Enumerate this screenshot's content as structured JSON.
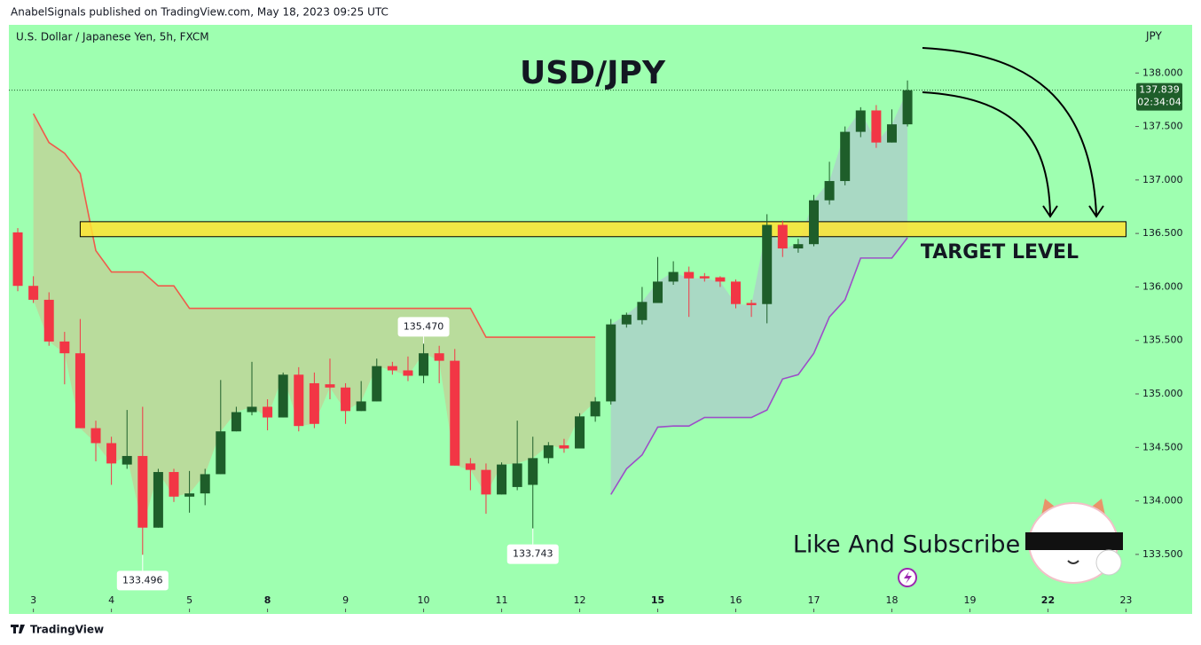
{
  "header": {
    "publisher": "AnabelSignals published on TradingView.com, May 18, 2023 09:25 UTC",
    "brand": "TradingView"
  },
  "chart_data": {
    "type": "candlestick",
    "symbol": "U.S. Dollar / Japanese Yen, 5h, FXCM",
    "currency": "JPY",
    "title": "USD/JPY",
    "open": [
      136.51,
      136.01,
      135.88,
      135.49,
      135.38,
      134.68,
      134.54,
      134.34,
      134.42,
      133.75,
      134.27,
      134.04,
      134.07,
      134.25,
      134.65,
      134.83,
      134.88,
      134.78,
      135.18,
      135.1,
      135.09,
      135.06,
      134.84,
      134.93,
      135.26,
      135.22,
      135.17,
      135.38,
      135.31,
      134.35,
      134.29,
      134.06,
      134.13,
      134.15,
      134.4,
      134.52,
      134.49,
      134.79,
      134.93,
      135.65,
      135.69,
      135.85,
      136.05,
      136.14,
      136.1,
      136.09,
      136.05,
      135.85,
      135.84,
      136.58,
      136.36,
      136.4,
      136.81,
      136.99,
      137.45,
      137.65,
      137.35,
      137.52
    ],
    "high": [
      136.55,
      136.1,
      135.95,
      135.58,
      135.7,
      134.75,
      134.6,
      134.85,
      134.88,
      134.3,
      134.3,
      134.28,
      134.3,
      135.13,
      134.88,
      135.3,
      134.95,
      135.2,
      135.25,
      135.2,
      135.33,
      135.1,
      135.12,
      135.33,
      135.3,
      135.35,
      135.47,
      135.45,
      135.42,
      134.4,
      134.35,
      134.36,
      134.75,
      134.6,
      134.55,
      134.58,
      134.82,
      134.97,
      135.7,
      135.76,
      136.0,
      136.28,
      136.24,
      136.19,
      136.13,
      136.1,
      136.07,
      135.88,
      136.68,
      136.62,
      136.45,
      136.86,
      137.17,
      137.5,
      137.68,
      137.7,
      137.66,
      137.93
    ],
    "low": [
      135.96,
      135.85,
      135.45,
      135.09,
      134.68,
      134.37,
      134.15,
      134.3,
      133.496,
      133.75,
      133.99,
      133.89,
      133.96,
      134.25,
      134.65,
      134.8,
      134.66,
      134.78,
      134.65,
      134.68,
      134.95,
      134.72,
      134.84,
      134.93,
      135.18,
      135.12,
      135.1,
      135.1,
      134.33,
      134.1,
      133.88,
      134.06,
      134.1,
      133.743,
      134.35,
      134.45,
      134.49,
      134.74,
      134.9,
      135.62,
      135.65,
      135.85,
      136.02,
      135.72,
      136.05,
      136.0,
      135.8,
      135.72,
      135.66,
      136.28,
      136.32,
      136.38,
      136.77,
      136.95,
      137.4,
      137.3,
      137.35,
      137.5
    ],
    "close": [
      136.01,
      135.88,
      135.49,
      135.38,
      134.68,
      134.54,
      134.35,
      134.42,
      133.75,
      134.27,
      134.04,
      134.07,
      134.25,
      134.65,
      134.83,
      134.88,
      134.78,
      135.18,
      134.7,
      134.72,
      135.06,
      134.84,
      134.93,
      135.26,
      135.22,
      135.17,
      135.38,
      135.31,
      134.33,
      134.29,
      134.06,
      134.34,
      134.35,
      134.4,
      134.52,
      134.49,
      134.79,
      134.93,
      135.65,
      135.74,
      135.86,
      136.05,
      136.14,
      136.08,
      136.08,
      136.05,
      135.84,
      135.83,
      136.58,
      136.36,
      136.4,
      136.81,
      136.99,
      137.45,
      137.65,
      137.35,
      137.52,
      137.839
    ],
    "up_color": "#1e5e2a",
    "down_color": "#f23645",
    "series": [
      {
        "color": "#f05a4a",
        "fill": "#b9dc9c",
        "values": [
          null,
          137.62,
          137.35,
          137.25,
          137.06,
          136.34,
          136.14,
          136.14,
          136.14,
          136.01,
          136.01,
          135.8,
          135.8,
          135.8,
          135.8,
          135.8,
          135.8,
          135.8,
          135.8,
          135.8,
          135.8,
          135.8,
          135.8,
          135.8,
          135.8,
          135.8,
          135.8,
          135.8,
          135.8,
          135.8,
          135.53,
          135.53,
          135.53,
          135.53,
          135.53,
          135.53,
          135.53,
          135.53,
          null,
          null,
          null,
          null,
          null,
          null,
          null,
          null,
          null,
          null,
          null,
          null,
          null,
          null,
          null,
          null,
          null,
          null,
          null,
          null
        ]
      },
      {
        "color": "#9c4fc8",
        "fill": "#a9d9c4",
        "values": [
          null,
          null,
          null,
          null,
          null,
          null,
          null,
          null,
          null,
          null,
          null,
          null,
          null,
          null,
          null,
          null,
          null,
          null,
          null,
          null,
          null,
          null,
          null,
          null,
          null,
          null,
          null,
          null,
          null,
          null,
          null,
          null,
          null,
          null,
          null,
          null,
          null,
          null,
          134.06,
          134.3,
          134.43,
          134.69,
          134.7,
          134.7,
          134.78,
          134.78,
          134.78,
          134.78,
          134.85,
          135.14,
          135.18,
          135.38,
          135.72,
          135.88,
          136.27,
          136.27,
          136.27,
          136.46
        ]
      }
    ],
    "extremes": [
      {
        "x": 26,
        "value": 135.47,
        "label": "135.470",
        "position": "above"
      },
      {
        "x": 8,
        "value": 133.496,
        "label": "133.496",
        "position": "below"
      },
      {
        "x": 33,
        "value": 133.743,
        "label": "133.743",
        "position": "below"
      }
    ],
    "countdown": "02:34:04",
    "zone": {
      "x": [
        4,
        71
      ],
      "y": [
        136.47,
        136.61
      ],
      "color": "#ffe433",
      "label": "TARGET LEVEL"
    },
    "annotation": "Like And Subscribe",
    "xlim": [
      -0.57,
      71.6
    ],
    "xticks": [
      {
        "value": 1,
        "label": "3"
      },
      {
        "value": 6,
        "label": "4"
      },
      {
        "value": 11,
        "label": "5"
      },
      {
        "value": 16,
        "label": "8",
        "bold": true
      },
      {
        "value": 21,
        "label": "9"
      },
      {
        "value": 26,
        "label": "10"
      },
      {
        "value": 31,
        "label": "11"
      },
      {
        "value": 36,
        "label": "12"
      },
      {
        "value": 41,
        "label": "15",
        "bold": true
      },
      {
        "value": 46,
        "label": "16"
      },
      {
        "value": 51,
        "label": "17"
      },
      {
        "value": 56,
        "label": "18"
      },
      {
        "value": 61,
        "label": "19"
      },
      {
        "value": 66,
        "label": "22",
        "bold": true
      },
      {
        "value": 71,
        "label": "23"
      }
    ],
    "ylim": [
      132.96,
      138.45
    ],
    "yticks": [
      {
        "value": 133.5,
        "label": "133.500"
      },
      {
        "value": 134,
        "label": "134.000"
      },
      {
        "value": 134.5,
        "label": "134.500"
      },
      {
        "value": 135,
        "label": "135.000"
      },
      {
        "value": 135.5,
        "label": "135.500"
      },
      {
        "value": 136,
        "label": "136.000"
      },
      {
        "value": 136.5,
        "label": "136.500"
      },
      {
        "value": 137,
        "label": "137.000"
      },
      {
        "value": 137.5,
        "label": "137.500"
      },
      {
        "value": 138,
        "label": "138.000"
      }
    ]
  }
}
